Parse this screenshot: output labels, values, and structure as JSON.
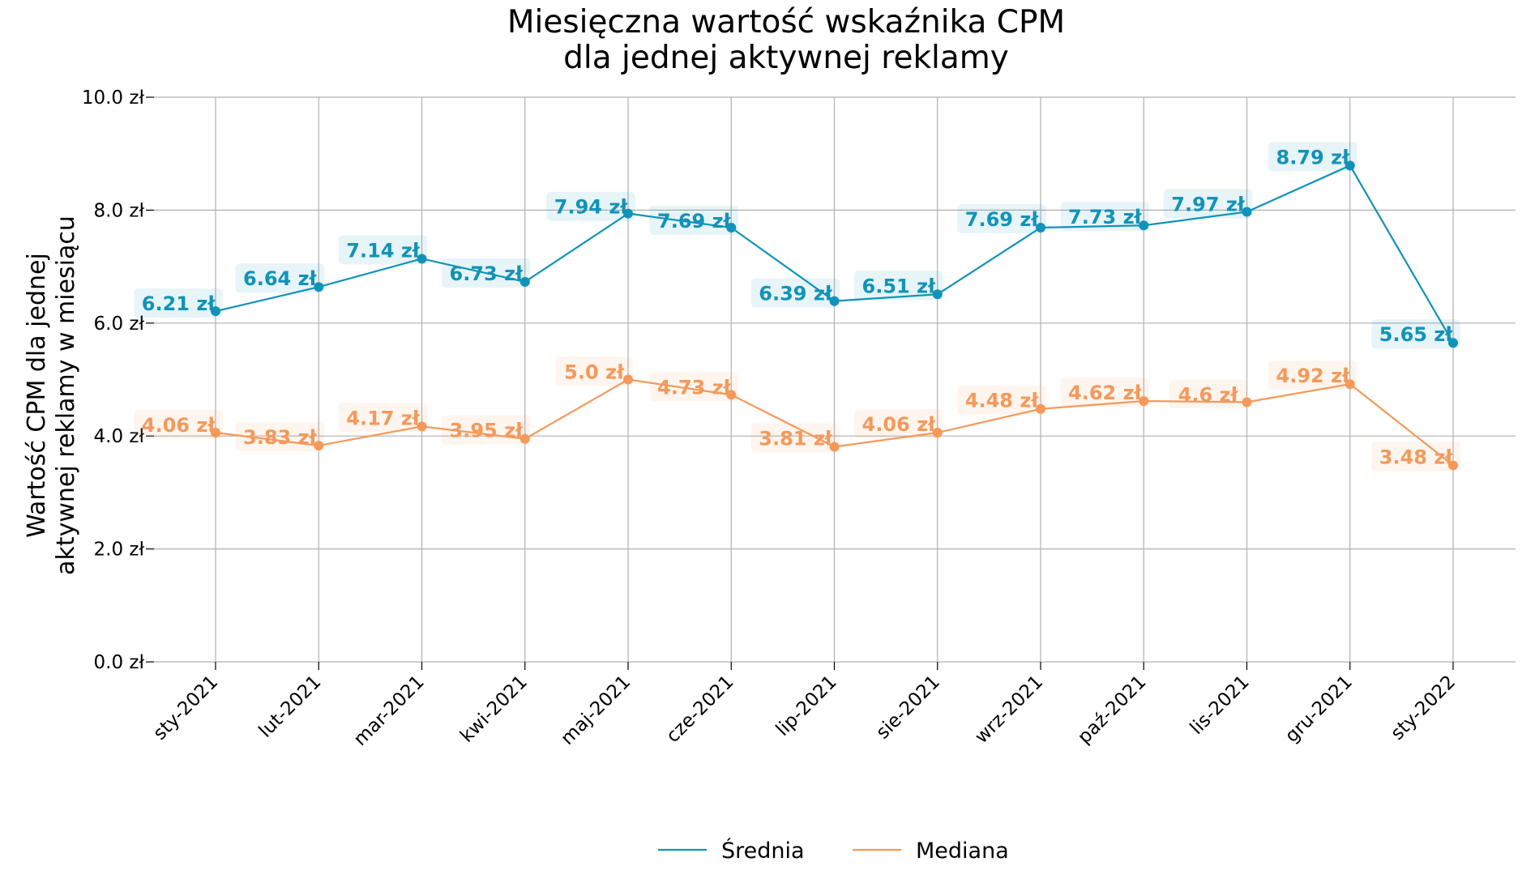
{
  "chart_data": {
    "type": "line",
    "title": [
      "Miesięczna wartość wskaźnika CPM",
      "dla jednej aktywnej reklamy"
    ],
    "ylabel": [
      "Wartość CPM dla jednej",
      "aktywnej reklamy w miesiącu"
    ],
    "xlabel": "",
    "ylim": [
      0,
      10
    ],
    "yticks": [
      0,
      2,
      4,
      6,
      8,
      10
    ],
    "ytick_labels": [
      "0.0 zł",
      "2.0 zł",
      "4.0 zł",
      "6.0 zł",
      "8.0 zł",
      "10.0 zł"
    ],
    "categories": [
      "sty-2021",
      "lut-2021",
      "mar-2021",
      "kwi-2021",
      "maj-2021",
      "cze-2021",
      "lip-2021",
      "sie-2021",
      "wrz-2021",
      "paź-2021",
      "lis-2021",
      "gru-2021",
      "sty-2022"
    ],
    "grid": true,
    "legend_position": "bottom-center",
    "series": [
      {
        "name": "Średnia",
        "color": "#1193b8",
        "values": [
          6.21,
          6.64,
          7.14,
          6.73,
          7.94,
          7.69,
          6.39,
          6.51,
          7.69,
          7.73,
          7.97,
          8.79,
          5.65
        ],
        "labels": [
          "6.21 zł",
          "6.64 zł",
          "7.14 zł",
          "6.73 zł",
          "7.94 zł",
          "7.69 zł",
          "6.39 zł",
          "6.51 zł",
          "7.69 zł",
          "7.73 zł",
          "7.97 zł",
          "8.79 zł",
          "5.65 zł"
        ]
      },
      {
        "name": "Mediana",
        "color": "#f4995b",
        "values": [
          4.06,
          3.83,
          4.17,
          3.95,
          5.0,
          4.73,
          3.81,
          4.06,
          4.48,
          4.62,
          4.6,
          4.92,
          3.48
        ],
        "labels": [
          "4.06 zł",
          "3.83 zł",
          "4.17 zł",
          "3.95 zł",
          "5.0 zł",
          "4.73 zł",
          "3.81 zł",
          "4.06 zł",
          "4.48 zł",
          "4.62 zł",
          "4.6 zł",
          "4.92 zł",
          "3.48 zł"
        ]
      }
    ]
  }
}
